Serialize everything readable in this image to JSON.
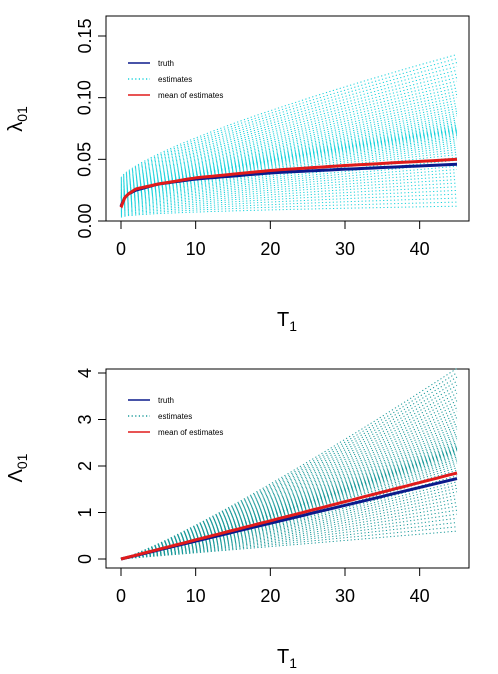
{
  "chart_data": [
    {
      "type": "line",
      "ylabel": "λ01",
      "xlabel": "T1",
      "xlim": [
        0,
        45
      ],
      "ylim": [
        0,
        0.15
      ],
      "x_ticks": [
        "0",
        "10",
        "20",
        "30",
        "40"
      ],
      "y_ticks": [
        "0.00",
        "0.05",
        "0.10",
        "0.15"
      ],
      "legend": {
        "position": "top-left",
        "entries": [
          "truth",
          "estimates",
          "mean of estimates"
        ]
      },
      "colors": {
        "truth": "#0b1a8c",
        "estimates": "#18d2dc",
        "mean": "#e01b1b"
      },
      "series": [
        {
          "name": "truth",
          "x": [
            0,
            0.5,
            1,
            2,
            5,
            10,
            20,
            30,
            45
          ],
          "values": [
            0.012,
            0.019,
            0.022,
            0.025,
            0.03,
            0.034,
            0.039,
            0.042,
            0.046
          ]
        },
        {
          "name": "mean of estimates",
          "x": [
            0,
            0.5,
            1,
            2,
            5,
            10,
            20,
            30,
            45
          ],
          "values": [
            0.011,
            0.019,
            0.022,
            0.026,
            0.03,
            0.035,
            0.041,
            0.045,
            0.05
          ]
        }
      ],
      "estimates_band": {
        "x": [
          0,
          45
        ],
        "min": [
          0.003,
          0.012
        ],
        "max": [
          0.035,
          0.135
        ],
        "count": 60
      }
    },
    {
      "type": "line",
      "ylabel": "Λ01",
      "xlabel": "T1",
      "xlim": [
        0,
        45
      ],
      "ylim": [
        0,
        4
      ],
      "x_ticks": [
        "0",
        "10",
        "20",
        "30",
        "40"
      ],
      "y_ticks": [
        "0",
        "1",
        "2",
        "3",
        "4"
      ],
      "legend": {
        "position": "top-left",
        "entries": [
          "truth",
          "estimates",
          "mean of estimates"
        ]
      },
      "colors": {
        "truth": "#0b1a8c",
        "estimates": "#1a9a9a",
        "mean": "#e01b1b"
      },
      "series": [
        {
          "name": "truth",
          "x": [
            0,
            45
          ],
          "values": [
            0,
            1.73
          ]
        },
        {
          "name": "mean of estimates",
          "x": [
            0,
            45
          ],
          "values": [
            0,
            1.85
          ]
        }
      ],
      "estimates_band": {
        "x": [
          0,
          45
        ],
        "min": [
          0,
          0.6
        ],
        "max": [
          0,
          4.1
        ],
        "count": 60
      }
    }
  ]
}
